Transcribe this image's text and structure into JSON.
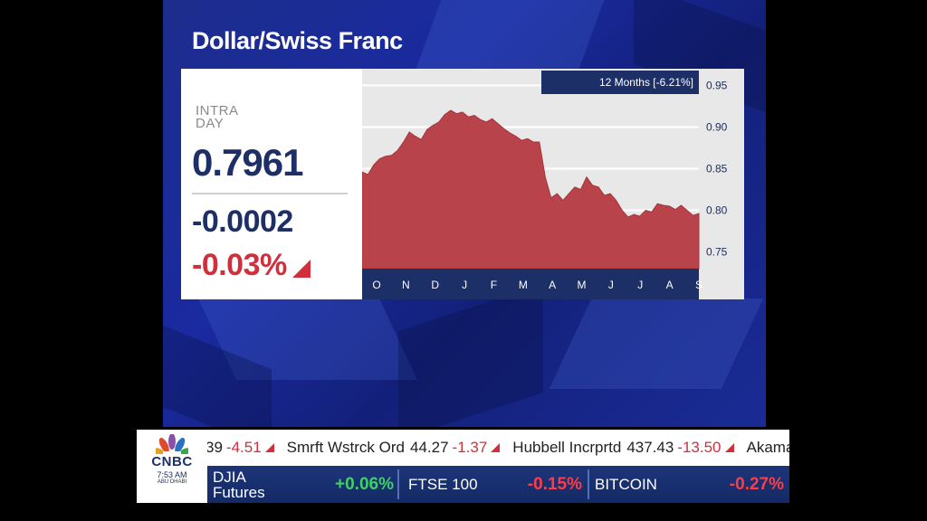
{
  "title": "Dollar/Swiss Franc",
  "quote": {
    "label": "INTRA DAY",
    "price": "0.7961",
    "change": "-0.0002",
    "change_pct": "-0.03%",
    "direction_icon": "down-triangle-icon"
  },
  "period_badge": "12 Months [-6.21%]",
  "colors": {
    "area": "#b8434a",
    "navy": "#1c2f66",
    "negative": "#d0303c",
    "positive": "#3fd068"
  },
  "chart_data": {
    "type": "area",
    "x_ticks": [
      "O",
      "N",
      "D",
      "J",
      "F",
      "M",
      "A",
      "M",
      "J",
      "J",
      "A",
      "S"
    ],
    "y_ticks": [
      "0.95",
      "0.90",
      "0.85",
      "0.80",
      "0.75"
    ],
    "ylim": [
      0.73,
      0.97
    ],
    "values": [
      0.846,
      0.843,
      0.855,
      0.862,
      0.865,
      0.866,
      0.872,
      0.882,
      0.894,
      0.889,
      0.885,
      0.897,
      0.902,
      0.906,
      0.915,
      0.92,
      0.916,
      0.918,
      0.912,
      0.914,
      0.909,
      0.906,
      0.91,
      0.904,
      0.898,
      0.893,
      0.889,
      0.884,
      0.886,
      0.882,
      0.882,
      0.84,
      0.815,
      0.82,
      0.812,
      0.82,
      0.828,
      0.825,
      0.84,
      0.83,
      0.828,
      0.818,
      0.82,
      0.812,
      0.8,
      0.792,
      0.795,
      0.793,
      0.8,
      0.798,
      0.808,
      0.806,
      0.805,
      0.801,
      0.806,
      0.8,
      0.794,
      0.796
    ],
    "grid": true
  },
  "ticker_top": [
    {
      "name": "",
      "value": "39",
      "change": "-4.51"
    },
    {
      "name": "Smrft Wstrck Ord",
      "value": "44.27",
      "change": "-1.37"
    },
    {
      "name": "Hubbell Incrprtd",
      "value": "437.43",
      "change": "-13.50"
    },
    {
      "name": "Akama",
      "value": "",
      "change": ""
    }
  ],
  "ticker_bottom": [
    {
      "name_line1": "DJIA",
      "name_line2": "Futures",
      "change": "+0.06%"
    },
    {
      "name": "FTSE 100",
      "change": "-0.15%"
    },
    {
      "name": "BITCOIN",
      "change": "-0.27%"
    }
  ],
  "logo": {
    "text": "CNBC",
    "time": "7:53 AM",
    "city": "ABU DHABI"
  }
}
